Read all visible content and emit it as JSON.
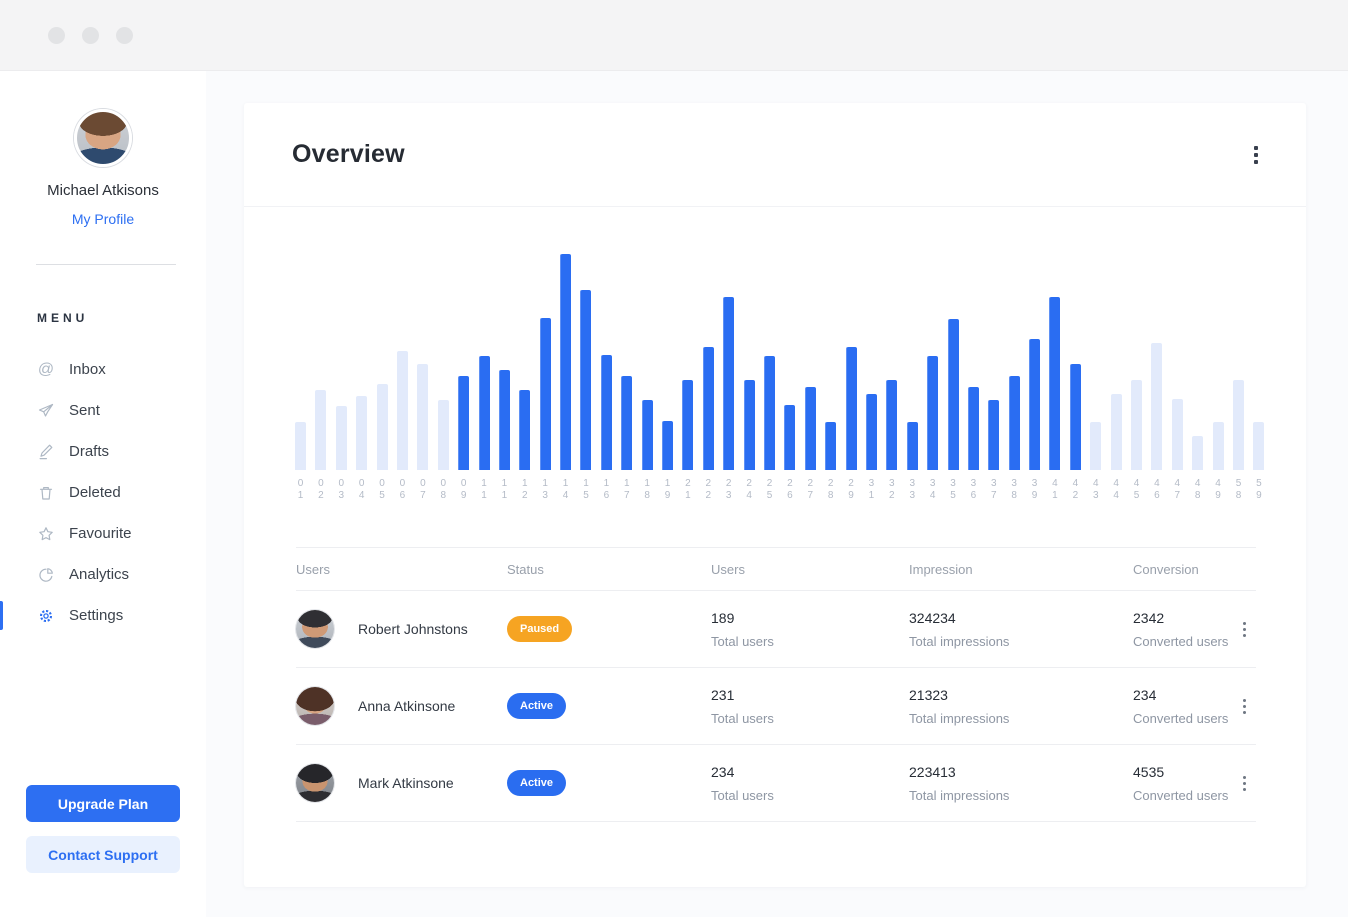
{
  "titlebar": {
    "controls": [
      "close",
      "minimize",
      "zoom"
    ]
  },
  "sidebar": {
    "profile": {
      "name": "Michael Atkisons",
      "link": "My Profile"
    },
    "menu_label": "MENU",
    "items": [
      {
        "label": "Inbox",
        "icon": "at-icon",
        "active": false
      },
      {
        "label": "Sent",
        "icon": "send-icon",
        "active": false
      },
      {
        "label": "Drafts",
        "icon": "pencil-icon",
        "active": false
      },
      {
        "label": "Deleted",
        "icon": "trash-icon",
        "active": false
      },
      {
        "label": "Favourite",
        "icon": "star-icon",
        "active": false
      },
      {
        "label": "Analytics",
        "icon": "pie-chart-icon",
        "active": false
      },
      {
        "label": "Settings",
        "icon": "gear-icon",
        "active": true
      }
    ],
    "upgrade_button": "Upgrade Plan",
    "support_button": "Contact Support"
  },
  "header": {
    "title": "Overview"
  },
  "chart_data": {
    "type": "bar",
    "title": "",
    "xlabel": "",
    "ylabel": "",
    "ylim": [
      0,
      240
    ],
    "grid": false,
    "legend": "none",
    "bar_color": "#2A6DF2",
    "muted_bar_color": "#E2EAFB",
    "bars": [
      {
        "label": "01",
        "value": 48,
        "muted": true
      },
      {
        "label": "02",
        "value": 80,
        "muted": true
      },
      {
        "label": "03",
        "value": 64,
        "muted": true
      },
      {
        "label": "04",
        "value": 74,
        "muted": true
      },
      {
        "label": "05",
        "value": 86,
        "muted": true
      },
      {
        "label": "06",
        "value": 119,
        "muted": true
      },
      {
        "label": "07",
        "value": 106,
        "muted": true
      },
      {
        "label": "08",
        "value": 70,
        "muted": true
      },
      {
        "label": "09",
        "value": 94,
        "muted": false
      },
      {
        "label": "11",
        "value": 114,
        "muted": false
      },
      {
        "label": "11",
        "value": 100,
        "muted": false
      },
      {
        "label": "12",
        "value": 80,
        "muted": false
      },
      {
        "label": "13",
        "value": 152,
        "muted": false
      },
      {
        "label": "14",
        "value": 216,
        "muted": false
      },
      {
        "label": "15",
        "value": 180,
        "muted": false
      },
      {
        "label": "16",
        "value": 115,
        "muted": false
      },
      {
        "label": "17",
        "value": 94,
        "muted": false
      },
      {
        "label": "18",
        "value": 70,
        "muted": false
      },
      {
        "label": "19",
        "value": 49,
        "muted": false
      },
      {
        "label": "21",
        "value": 90,
        "muted": false
      },
      {
        "label": "22",
        "value": 123,
        "muted": false
      },
      {
        "label": "23",
        "value": 173,
        "muted": false
      },
      {
        "label": "24",
        "value": 90,
        "muted": false
      },
      {
        "label": "25",
        "value": 114,
        "muted": false
      },
      {
        "label": "26",
        "value": 65,
        "muted": false
      },
      {
        "label": "27",
        "value": 83,
        "muted": false
      },
      {
        "label": "28",
        "value": 48,
        "muted": false
      },
      {
        "label": "29",
        "value": 123,
        "muted": false
      },
      {
        "label": "31",
        "value": 76,
        "muted": false
      },
      {
        "label": "32",
        "value": 90,
        "muted": false
      },
      {
        "label": "33",
        "value": 48,
        "muted": false
      },
      {
        "label": "34",
        "value": 114,
        "muted": false
      },
      {
        "label": "35",
        "value": 151,
        "muted": false
      },
      {
        "label": "36",
        "value": 83,
        "muted": false
      },
      {
        "label": "37",
        "value": 70,
        "muted": false
      },
      {
        "label": "38",
        "value": 94,
        "muted": false
      },
      {
        "label": "39",
        "value": 131,
        "muted": false
      },
      {
        "label": "41",
        "value": 173,
        "muted": false
      },
      {
        "label": "42",
        "value": 106,
        "muted": false
      },
      {
        "label": "43",
        "value": 48,
        "muted": true
      },
      {
        "label": "44",
        "value": 76,
        "muted": true
      },
      {
        "label": "45",
        "value": 90,
        "muted": true
      },
      {
        "label": "46",
        "value": 127,
        "muted": true
      },
      {
        "label": "47",
        "value": 71,
        "muted": true
      },
      {
        "label": "48",
        "value": 34,
        "muted": true
      },
      {
        "label": "49",
        "value": 48,
        "muted": true
      },
      {
        "label": "58",
        "value": 90,
        "muted": true
      },
      {
        "label": "59",
        "value": 48,
        "muted": true
      }
    ]
  },
  "table": {
    "headers": [
      "Users",
      "Status",
      "Users",
      "Impression",
      "Conversion"
    ],
    "rows": [
      {
        "name": "Robert Johnstons",
        "status": "Paused",
        "status_color": "#F6A422",
        "users": "189",
        "users_label": "Total users",
        "impression": "324234",
        "impression_label": "Total impressions",
        "conversion": "2342",
        "conversion_label": "Converted users"
      },
      {
        "name": "Anna Atkinsone",
        "status": "Active",
        "status_color": "#2A6DF0",
        "users": "231",
        "users_label": "Total users",
        "impression": "21323",
        "impression_label": "Total impressions",
        "conversion": "234",
        "conversion_label": "Converted users"
      },
      {
        "name": "Mark Atkinsone",
        "status": "Active",
        "status_color": "#2A6DF0",
        "users": "234",
        "users_label": "Total users",
        "impression": "223413",
        "impression_label": "Total impressions",
        "conversion": "4535",
        "conversion_label": "Converted users"
      }
    ]
  },
  "colors": {
    "accent": "#2D6FF2",
    "bar_blue": "#2A6DF2",
    "bar_muted": "#E2EAFB",
    "badge_paused": "#F6A422",
    "badge_active": "#2A6DF0",
    "support_button_bg": "#E9F1FE",
    "titlebar_bg": "#F4F4F5",
    "page_bg": "#FAFBFD"
  }
}
